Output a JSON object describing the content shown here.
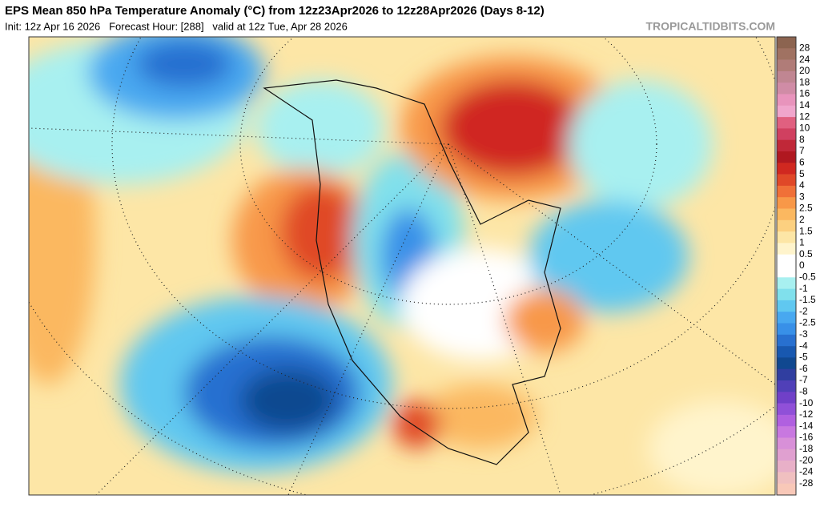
{
  "header": {
    "title": "EPS Mean 850 hPa Temperature Anomaly (°C) from 12z23Apr2026 to 12z28Apr2026 (Days 8-12)",
    "subtitle": "Init: 12z Apr 16 2026   Forecast Hour: [288]   valid at 12z Tue, Apr 28 2026",
    "source": "TROPICALTIDBITS.COM"
  },
  "colorbar": {
    "levels": [
      28,
      24,
      20,
      18,
      16,
      14,
      12,
      10,
      8,
      7,
      6,
      5,
      4,
      3,
      2.5,
      2,
      1.5,
      1,
      0.5,
      0,
      -0.5,
      -1,
      -1.5,
      -2,
      -2.5,
      -3,
      -4,
      -5,
      -6,
      -7,
      -8,
      -10,
      -12,
      -14,
      -16,
      -18,
      -20,
      -24,
      -28
    ],
    "colors": [
      "#8c6450",
      "#a07262",
      "#b07c78",
      "#c08692",
      "#d08ca6",
      "#e894bc",
      "#f0a6cc",
      "#e06080",
      "#d04060",
      "#c02838",
      "#b01820",
      "#d02820",
      "#e04828",
      "#f07038",
      "#f89848",
      "#fbb860",
      "#fcd080",
      "#fde6a6",
      "#fff4cc",
      "#ffffff",
      "#ffffff",
      "#a8f0f0",
      "#80e0ec",
      "#60c8f0",
      "#48a8f0",
      "#3890e8",
      "#2870d0",
      "#1858b0",
      "#104890",
      "#303ea0",
      "#5040b8",
      "#7040c8",
      "#9050d8",
      "#b060e0",
      "#c878e0",
      "#d890d8",
      "#e0a0d0",
      "#e8b0c8",
      "#f0c0c0",
      "#f8c8b8"
    ]
  }
}
